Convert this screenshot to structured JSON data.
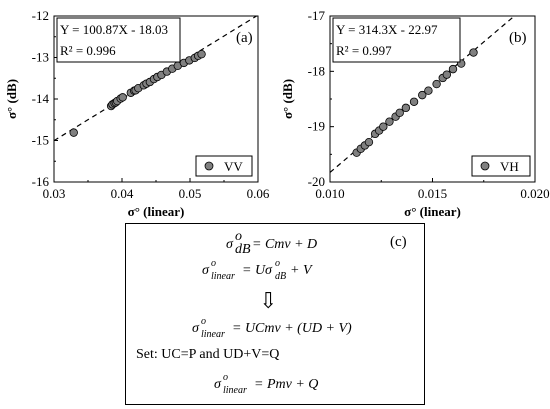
{
  "chart_data": [
    {
      "type": "scatter",
      "panel_label": "(a)",
      "xlabel": "σ° (linear)",
      "ylabel": "σ° (dB)",
      "xlim": [
        0.03,
        0.06
      ],
      "ylim": [
        -16,
        -12
      ],
      "x_ticks": [
        "0.03",
        "0.04",
        "0.05",
        "0.06"
      ],
      "y_ticks": [
        "-12",
        "-13",
        "-14",
        "-15",
        "-16"
      ],
      "equation": "Y = 100.87X - 18.03",
      "r2": "R² = 0.996",
      "fit": {
        "slope": 100.87,
        "intercept": -18.03,
        "style": "dashed"
      },
      "legend": {
        "label": "VV",
        "placement": "bottom-right"
      },
      "points": {
        "x": [
          0.0329,
          0.0384,
          0.0386,
          0.0389,
          0.0391,
          0.0393,
          0.0398,
          0.0401,
          0.0413,
          0.0418,
          0.042,
          0.0424,
          0.0432,
          0.0436,
          0.0441,
          0.0447,
          0.0452,
          0.0458,
          0.0466,
          0.0474,
          0.0482,
          0.0491,
          0.0499,
          0.0507,
          0.0512,
          0.0517
        ],
        "y": [
          -14.81,
          -14.17,
          -14.13,
          -14.1,
          -14.08,
          -14.05,
          -13.99,
          -13.96,
          -13.85,
          -13.8,
          -13.79,
          -13.74,
          -13.67,
          -13.63,
          -13.59,
          -13.52,
          -13.47,
          -13.42,
          -13.34,
          -13.27,
          -13.2,
          -13.13,
          -13.07,
          -13.01,
          -12.96,
          -12.92
        ]
      }
    },
    {
      "type": "scatter",
      "panel_label": "(b)",
      "xlabel": "σ° (linear)",
      "ylabel": "σ° (dB)",
      "xlim": [
        0.01,
        0.02
      ],
      "ylim": [
        -20,
        -17
      ],
      "x_ticks": [
        "0.010",
        "0.015",
        "0.020"
      ],
      "y_ticks": [
        "-17",
        "-18",
        "-19",
        "-20"
      ],
      "equation": "Y = 314.3X - 22.97",
      "r2": "R² = 0.997",
      "fit": {
        "slope": 314.3,
        "intercept": -22.97,
        "style": "dashed"
      },
      "legend": {
        "label": "VH",
        "placement": "bottom-right"
      },
      "points": {
        "x": [
          0.0113,
          0.0115,
          0.0117,
          0.0119,
          0.0122,
          0.0124,
          0.0126,
          0.0129,
          0.0132,
          0.0134,
          0.0137,
          0.0141,
          0.0145,
          0.0148,
          0.0152,
          0.0155,
          0.0157,
          0.016,
          0.0164,
          0.017
        ],
        "y": [
          -19.47,
          -19.4,
          -19.34,
          -19.28,
          -19.13,
          -19.07,
          -19.0,
          -18.91,
          -18.82,
          -18.75,
          -18.66,
          -18.55,
          -18.43,
          -18.35,
          -18.23,
          -18.12,
          -18.06,
          -17.96,
          -17.86,
          -17.66
        ]
      }
    }
  ],
  "panel_c": {
    "label": "(c)",
    "eq1": "σ^o_dB = Cmv + D",
    "eq2": "σ^o_linear = Uσ^o_dB + V",
    "arrow": "⇩",
    "eq3": "σ^o_linear = UCmv + (UD + V)",
    "set_line": "Set: UC=P and UD+V=Q",
    "eq4": "σ^o_linear = Pmv + Q"
  }
}
